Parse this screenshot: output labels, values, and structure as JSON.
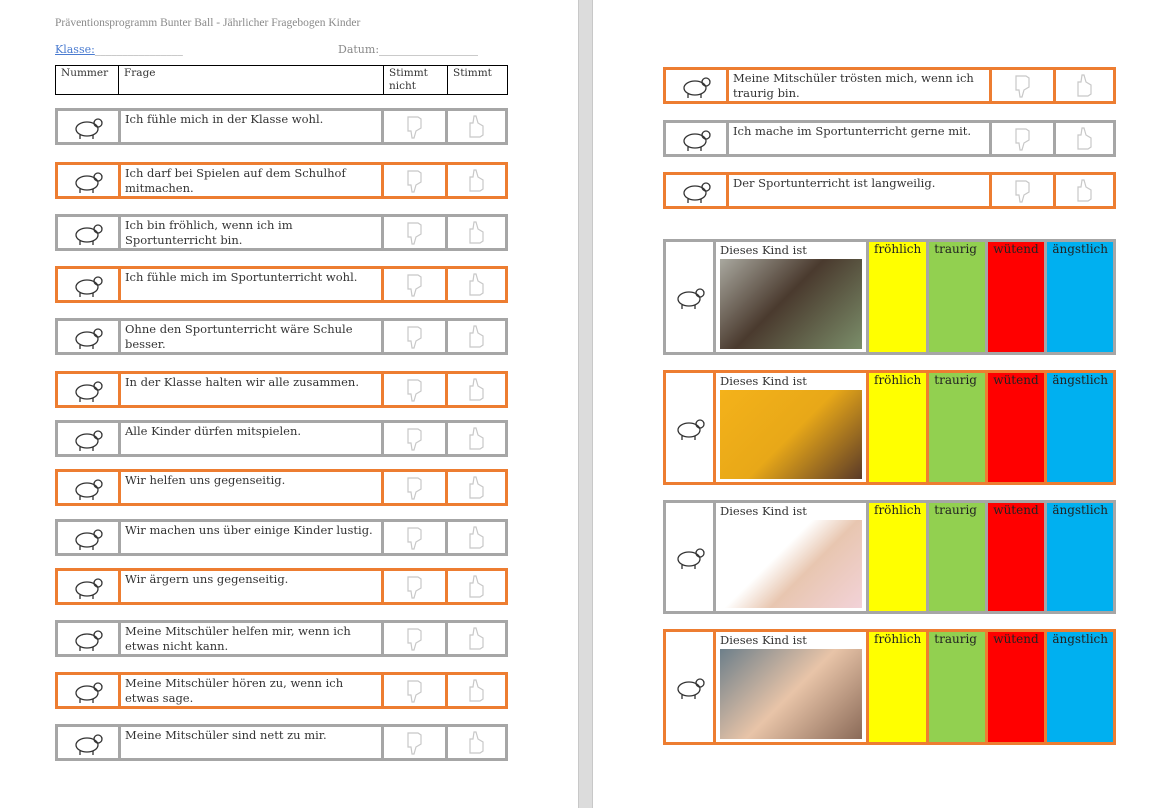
{
  "header": {
    "title": "Präventionsprogramm Bunter Ball - Jährlicher Fragebogen Kinder",
    "klasse_label": "Klasse:",
    "klasse_blank": "________________",
    "datum_label": "Datum:",
    "datum_blank": "__________________"
  },
  "table_header": {
    "nummer": "Nummer",
    "frage": "Frage",
    "stimmt_nicht": "Stimmt nicht",
    "stimmt": "Stimmt"
  },
  "colors": {
    "orange": "#ed7d31",
    "grey": "#a6a6a6",
    "froehlich": "#ffff00",
    "traurig": "#92d050",
    "wuetend": "#ff0000",
    "aengstlich": "#00b0f0"
  },
  "questions_left": [
    {
      "icon": "owl-icon",
      "text": "Ich fühle mich in der Klasse wohl.",
      "border": "grey"
    },
    {
      "icon": "clownfish-icon",
      "text": "Ich darf bei Spielen auf dem Schulhof mitmachen.",
      "border": "orange"
    },
    {
      "icon": "rabbit-icon",
      "text": "Ich bin fröhlich, wenn ich im Sportunterricht bin.",
      "border": "grey"
    },
    {
      "icon": "flamingo-icon",
      "text": "Ich fühle mich im Sportunterricht wohl.",
      "border": "orange"
    },
    {
      "icon": "snail-icon",
      "text": "Ohne den Sportunterricht wäre Schule besser.",
      "border": "grey"
    },
    {
      "icon": "koala-icon",
      "text": "In der Klasse halten wir alle zusammen.",
      "border": "orange"
    },
    {
      "icon": "octopus-icon",
      "text": "Alle Kinder dürfen mitspielen.",
      "border": "grey"
    },
    {
      "icon": "rhino-icon",
      "text": "Wir helfen uns gegenseitig.",
      "border": "orange"
    },
    {
      "icon": "turtle-icon",
      "text": "Wir machen uns über einige Kinder lustig.",
      "border": "grey"
    },
    {
      "icon": "snake-icon",
      "text": "Wir ärgern uns gegenseitig.",
      "border": "orange"
    },
    {
      "icon": "lizard-icon",
      "text": "Meine Mitschüler helfen mir, wenn ich etwas nicht kann.",
      "border": "grey"
    },
    {
      "icon": "seal-icon",
      "text": "Meine Mitschüler hören zu, wenn ich etwas sage.",
      "border": "orange"
    },
    {
      "icon": "unicorn-icon",
      "text": "Meine Mitschüler sind nett zu mir.",
      "border": "grey"
    }
  ],
  "questions_right": [
    {
      "icon": "bee-icon",
      "text": "Meine Mitschüler trösten mich, wenn ich traurig bin.",
      "border": "orange"
    },
    {
      "icon": "kangaroo-icon",
      "text": "Ich mache im Sportunterricht gerne mit.",
      "border": "grey"
    },
    {
      "icon": "crocodile-icon",
      "text": "Der Sportunterricht ist langweilig.",
      "border": "orange"
    }
  ],
  "emotion_label": "Dieses Kind ist",
  "emotions": [
    "fröhlich",
    "traurig",
    "wütend",
    "ängstlich"
  ],
  "emotion_items": [
    {
      "icon": "dog-icon",
      "photo": "smiling-boy-photo",
      "border": "grey"
    },
    {
      "icon": "penguin-icon",
      "photo": "angry-girl-photo",
      "border": "orange"
    },
    {
      "icon": "zebra-icon",
      "photo": "scared-girl-photo",
      "border": "grey"
    },
    {
      "icon": "cat-icon",
      "photo": "crying-child-photo",
      "border": "orange"
    }
  ]
}
